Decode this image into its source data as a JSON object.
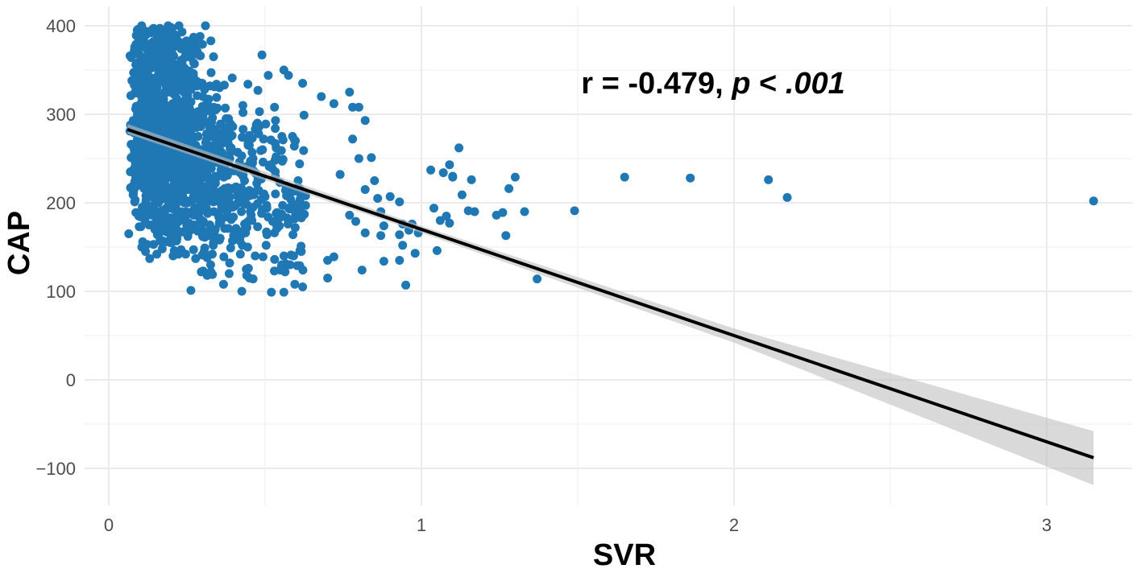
{
  "chart_data": {
    "type": "scatter",
    "title": "",
    "xlabel": "SVR",
    "ylabel": "CAP",
    "xlim": [
      -0.06,
      3.2
    ],
    "ylim": [
      -130,
      410
    ],
    "x_ticks": [
      0,
      1,
      2,
      3
    ],
    "x_tick_labels": [
      "0",
      "1",
      "2",
      "3"
    ],
    "y_ticks": [
      -100,
      0,
      100,
      200,
      300,
      400
    ],
    "y_tick_labels": [
      "−100",
      "0",
      "100",
      "200",
      "300",
      "400"
    ],
    "grid": true,
    "legend": "none",
    "colors": {
      "points": "#1f77b4",
      "fit_line": "#000000",
      "confidence_band": "#bfbfbf",
      "grid": "#ebebeb"
    },
    "annotation": {
      "prefix": "r = -0.479, ",
      "p_symbol": "p",
      "operator": " < ",
      "p_value": ".001"
    },
    "fit_line": {
      "x_start": 0.06,
      "x_end": 3.15,
      "slope": -120.0,
      "intercept": 290.0
    },
    "confidence_band": [
      {
        "x": 0.06,
        "lower": 278,
        "upper": 289
      },
      {
        "x": 1.0,
        "lower": 166,
        "upper": 174
      },
      {
        "x": 2.0,
        "lower": 42,
        "upper": 58
      },
      {
        "x": 3.15,
        "lower": -119,
        "upper": -58
      }
    ],
    "cluster": {
      "description_values": "dense cloud of points",
      "x_range": [
        0.06,
        0.95
      ],
      "y_range": [
        100,
        400
      ],
      "count": 1500
    },
    "series": [
      {
        "name": "",
        "points": [
          [
            0.56,
            350
          ],
          [
            0.62,
            335
          ],
          [
            0.68,
            320
          ],
          [
            0.72,
            312
          ],
          [
            0.78,
            308
          ],
          [
            0.77,
            325
          ],
          [
            0.8,
            308
          ],
          [
            0.82,
            293
          ],
          [
            0.78,
            272
          ],
          [
            0.8,
            250
          ],
          [
            0.84,
            251
          ],
          [
            0.85,
            225
          ],
          [
            0.82,
            215
          ],
          [
            0.86,
            205
          ],
          [
            0.87,
            190
          ],
          [
            0.88,
            174
          ],
          [
            0.87,
            163
          ],
          [
            0.82,
            166
          ],
          [
            0.9,
            207
          ],
          [
            0.93,
            201
          ],
          [
            0.94,
            176
          ],
          [
            0.93,
            164
          ],
          [
            0.94,
            152
          ],
          [
            0.93,
            135
          ],
          [
            0.96,
            169
          ],
          [
            0.97,
            176
          ],
          [
            0.99,
            166
          ],
          [
            0.98,
            143
          ],
          [
            0.88,
            134
          ],
          [
            0.81,
            124
          ],
          [
            0.95,
            107
          ],
          [
            0.62,
            105
          ],
          [
            0.7,
            115
          ],
          [
            0.58,
            130
          ],
          [
            0.7,
            135
          ],
          [
            0.72,
            139
          ],
          [
            0.52,
            99
          ],
          [
            0.56,
            99
          ],
          [
            0.45,
            115
          ],
          [
            0.44,
            125
          ],
          [
            0.49,
            367
          ],
          [
            0.51,
            344
          ],
          [
            0.74,
            232
          ],
          [
            0.77,
            186
          ],
          [
            0.79,
            179
          ],
          [
            1.03,
            237
          ],
          [
            1.04,
            194
          ],
          [
            1.05,
            146
          ],
          [
            1.06,
            180
          ],
          [
            1.08,
            185
          ],
          [
            1.09,
            177
          ],
          [
            1.1,
            229
          ],
          [
            1.12,
            262
          ],
          [
            1.13,
            209
          ],
          [
            1.15,
            191
          ],
          [
            1.16,
            226
          ],
          [
            1.17,
            190
          ],
          [
            1.24,
            186
          ],
          [
            1.26,
            189
          ],
          [
            1.27,
            163
          ],
          [
            1.28,
            216
          ],
          [
            1.3,
            229
          ],
          [
            1.33,
            190
          ],
          [
            1.37,
            114
          ],
          [
            1.49,
            191
          ],
          [
            1.65,
            229
          ],
          [
            1.86,
            228
          ],
          [
            2.11,
            226
          ],
          [
            2.17,
            206
          ],
          [
            3.15,
            202
          ],
          [
            1.07,
            234
          ],
          [
            1.09,
            243
          ],
          [
            1.1,
            230
          ]
        ]
      }
    ]
  }
}
